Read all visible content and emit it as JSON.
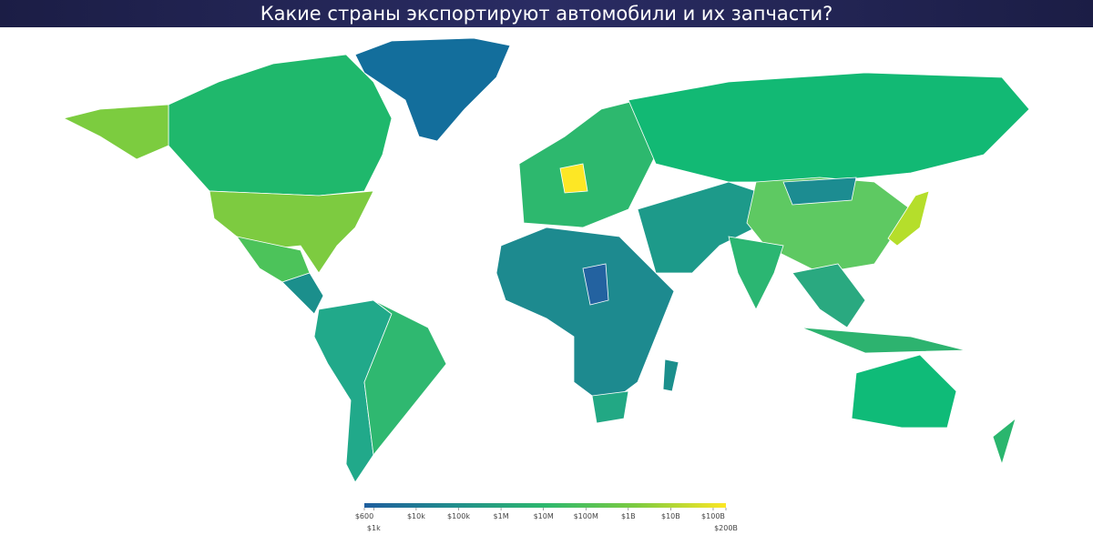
{
  "title": "Какие страны экспортируют автомобили и их запчасти?",
  "legend": {
    "scale": "log",
    "range": [
      600,
      200000000000
    ],
    "colors": [
      "#1f5e9e",
      "#218e8c",
      "#2db86e",
      "#7ccb40",
      "#fde725"
    ],
    "ticks": [
      {
        "value": 600,
        "label": "$600"
      },
      {
        "value": 1000,
        "label": "$1k"
      },
      {
        "value": 10000,
        "label": "$10k"
      },
      {
        "value": 100000,
        "label": "$100k"
      },
      {
        "value": 1000000,
        "label": "$1M"
      },
      {
        "value": 10000000,
        "label": "$10M"
      },
      {
        "value": 100000000,
        "label": "$100M"
      },
      {
        "value": 1000000000,
        "label": "$1B"
      },
      {
        "value": 10000000000,
        "label": "$10B"
      },
      {
        "value": 100000000000,
        "label": "$100B"
      },
      {
        "value": 200000000000,
        "label": "$200B"
      }
    ]
  }
}
